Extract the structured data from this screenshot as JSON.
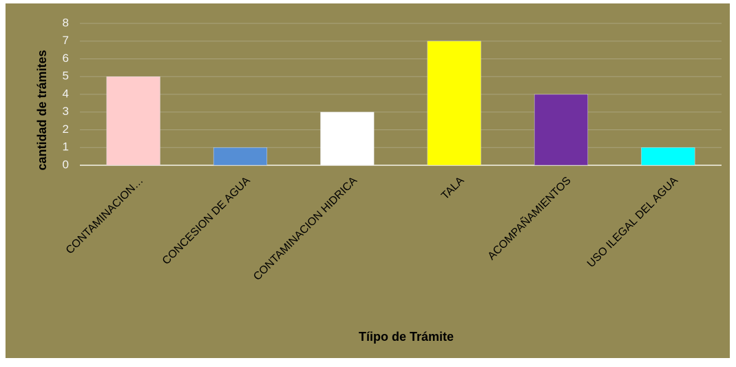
{
  "chart_data": {
    "type": "bar",
    "xlabel": "Tíipo de Trámite",
    "ylabel": "cantidad de trámites",
    "categories": [
      "CONTAMINACION…",
      "CONCESION DE AGUA",
      "CONTAMINACION HIDRICA",
      "TALA",
      "ACOMPAÑAMIENTOS",
      "USO ILEGAL DEL AGUA"
    ],
    "values": [
      5,
      1,
      3,
      7,
      4,
      1
    ],
    "colors": [
      "#ffcccc",
      "#558ed5",
      "#ffffff",
      "#ffff00",
      "#7030a0",
      "#00ffff"
    ],
    "ylim": [
      0,
      8
    ],
    "yticks": [
      0,
      1,
      2,
      3,
      4,
      5,
      6,
      7,
      8
    ],
    "grid": true
  }
}
